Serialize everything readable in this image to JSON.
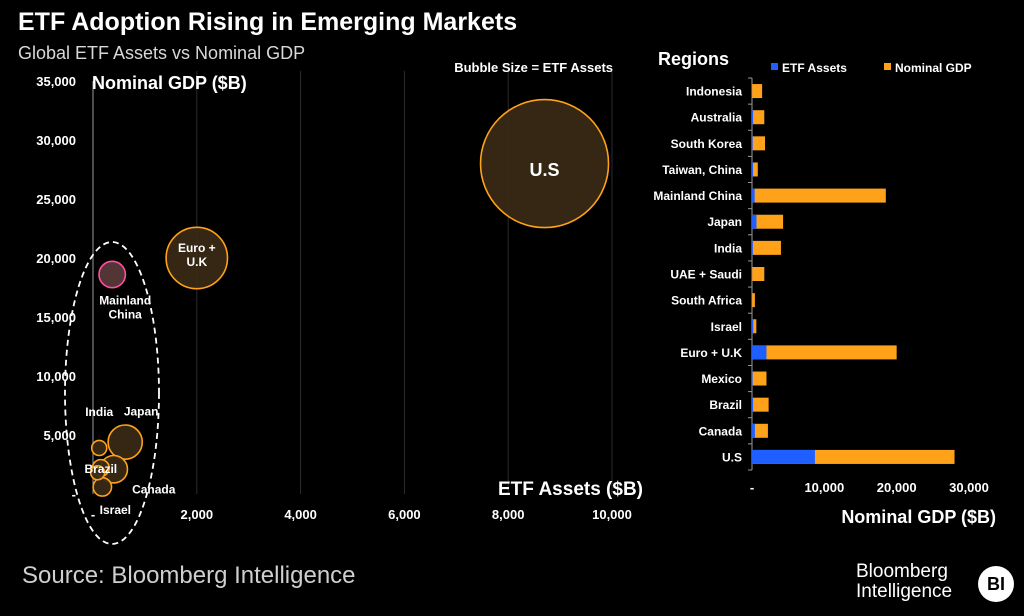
{
  "header": {
    "title": "ETF Adoption Rising in Emerging Markets",
    "subtitle": "Global ETF Assets vs Nominal GDP"
  },
  "footer": {
    "source": "Source: Bloomberg Intelligence",
    "brand_line1": "Bloomberg",
    "brand_line2": "Intelligence",
    "badge": "BI"
  },
  "colors": {
    "etf": "#1f5fff",
    "gdp": "#ffa21a",
    "bubble_fill": "#3a2a15",
    "bubble_stroke": "#ffa21a",
    "china_fill": "#5a3a3a",
    "china_stroke": "#ff4fa0"
  },
  "chart_data": [
    {
      "type": "scatter",
      "title": "Global ETF Assets vs Nominal GDP",
      "xlabel": "ETF Assets ($B)",
      "ylabel": "Nominal GDP ($B)",
      "note": "Bubble Size = ETF Assets",
      "xlim": [
        0,
        10000
      ],
      "ylim": [
        0,
        35000
      ],
      "x_ticks": [
        0,
        2000,
        4000,
        6000,
        8000,
        10000
      ],
      "x_tick_labels": [
        "-",
        "2,000",
        "4,000",
        "6,000",
        "8,000",
        "10,000"
      ],
      "y_ticks": [
        0,
        5000,
        10000,
        15000,
        20000,
        25000,
        30000,
        35000
      ],
      "y_tick_labels": [
        "-",
        "5,000",
        "10,000",
        "15,000",
        "20,000",
        "25,000",
        "30,000",
        "35,000"
      ],
      "grid": "vertical",
      "points": [
        {
          "name": "U.S",
          "label": "U.S",
          "x": 8700,
          "y": 28000,
          "size": 8700
        },
        {
          "name": "Euro + U.K",
          "label": "Euro +\nU.K",
          "x": 2000,
          "y": 20000,
          "size": 2000
        },
        {
          "name": "Mainland China",
          "label": "Mainland\nChina",
          "x": 370,
          "y": 18600,
          "size": 370
        },
        {
          "name": "Japan",
          "label": "Japan",
          "x": 620,
          "y": 4400,
          "size": 620
        },
        {
          "name": "India",
          "label": "India",
          "x": 120,
          "y": 3900,
          "size": 120
        },
        {
          "name": "Canada",
          "label": "Canada",
          "x": 400,
          "y": 2100,
          "size": 400
        },
        {
          "name": "Brazil",
          "label": "Brazil",
          "x": 150,
          "y": 2200,
          "size": 150
        },
        {
          "name": "Mexico",
          "label": "",
          "x": 90,
          "y": 1800,
          "size": 90
        },
        {
          "name": "Israel",
          "label": "Israel",
          "x": 180,
          "y": 600,
          "size": 180
        }
      ],
      "annotation": "dashed ellipse around emerging markets"
    },
    {
      "type": "bar",
      "orientation": "horizontal",
      "title": "Regions",
      "xlabel": "Nominal GDP ($B)",
      "xlim": [
        0,
        30000
      ],
      "x_ticks": [
        0,
        10000,
        20000,
        30000
      ],
      "x_tick_labels": [
        "-",
        "10,000",
        "20,000",
        "30,000"
      ],
      "categories": [
        "Indonesia",
        "Australia",
        "South Korea",
        "Taiwan, China",
        "Mainland China",
        "Japan",
        "India",
        "UAE + Saudi",
        "South Africa",
        "Israel",
        "Euro + U.K",
        "Mexico",
        "Brazil",
        "Canada",
        "U.S"
      ],
      "series": [
        {
          "name": "ETF Assets",
          "values": [
            10,
            150,
            100,
            150,
            370,
            620,
            120,
            20,
            10,
            180,
            2000,
            90,
            150,
            400,
            8700
          ]
        },
        {
          "name": "Nominal GDP",
          "values": [
            1400,
            1700,
            1800,
            800,
            18500,
            4300,
            4000,
            1700,
            400,
            600,
            20000,
            2000,
            2300,
            2200,
            28000
          ]
        }
      ]
    }
  ]
}
